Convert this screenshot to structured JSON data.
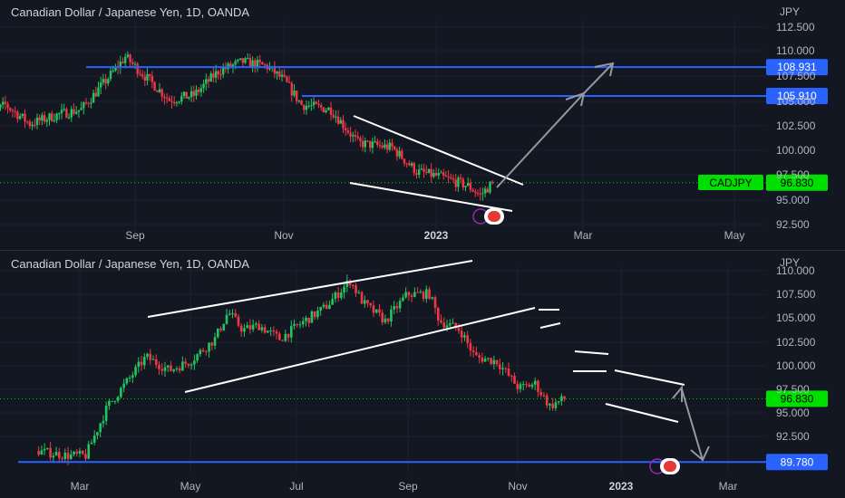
{
  "panels": [
    {
      "title": "Canadian Dollar / Japanese Yen, 1D, OANDA",
      "unit": "JPY",
      "symbol_tag": "CADJPY",
      "price_ticks": [
        "112.500",
        "110.000",
        "107.500",
        "105.000",
        "102.500",
        "100.000",
        "97.500",
        "95.000",
        "92.500"
      ],
      "time_ticks": [
        "Sep",
        "Nov",
        "2023",
        "Mar",
        "May"
      ],
      "levels": [
        "108.931",
        "105.910"
      ],
      "last_price": "96.830"
    },
    {
      "title": "Canadian Dollar / Japanese Yen, 1D, OANDA",
      "unit": "JPY",
      "price_ticks": [
        "110.000",
        "107.500",
        "105.000",
        "102.500",
        "100.000",
        "97.500",
        "95.000",
        "92.500"
      ],
      "time_ticks": [
        "Mar",
        "May",
        "Jul",
        "Sep",
        "Nov",
        "2023",
        "Mar"
      ],
      "levels": [
        "89.780"
      ],
      "last_price": "96.830"
    }
  ],
  "colors": {
    "up": "#26a69a",
    "down": "#ef5350",
    "up_candle": "#22c55e",
    "down_candle": "#f23645",
    "level": "#2962ff",
    "tag": "#00e000",
    "grid": "#1e2230",
    "trend": "#ffffff",
    "arrow": "#9598a1"
  },
  "icons": [
    "canada-flag-icon"
  ],
  "chart_data": [
    {
      "type": "candlestick",
      "title": "Canadian Dollar / Japanese Yen, 1D, OANDA",
      "y_unit": "JPY",
      "ylim": [
        91.5,
        113.5
      ],
      "x_ticks": [
        "Sep",
        "Nov",
        "2023",
        "Mar",
        "May"
      ],
      "horizontal_levels": [
        108.931,
        105.91
      ],
      "last_price": 96.83,
      "close_path": [
        {
          "t": "Jul 1",
          "close": 103.5
        },
        {
          "t": "Jul 10",
          "close": 105.0
        },
        {
          "t": "Jul 20",
          "close": 103.0
        },
        {
          "t": "Aug 1",
          "close": 104.0
        },
        {
          "t": "Aug 10",
          "close": 104.5
        },
        {
          "t": "Aug 20",
          "close": 107.5
        },
        {
          "t": "Aug 28",
          "close": 110.0
        },
        {
          "t": "Sep 5",
          "close": 108.0
        },
        {
          "t": "Sep 15",
          "close": 105.5
        },
        {
          "t": "Sep 25",
          "close": 106.0
        },
        {
          "t": "Oct 5",
          "close": 108.5
        },
        {
          "t": "Oct 15",
          "close": 109.5
        },
        {
          "t": "Oct 25",
          "close": 109.0
        },
        {
          "t": "Nov 1",
          "close": 107.5
        },
        {
          "t": "Nov 8",
          "close": 105.0
        },
        {
          "t": "Nov 20",
          "close": 104.5
        },
        {
          "t": "Dec 1",
          "close": 101.0
        },
        {
          "t": "Dec 15",
          "close": 100.5
        },
        {
          "t": "Dec 25",
          "close": 98.0
        },
        {
          "t": "Jan 3",
          "close": 97.5
        },
        {
          "t": "Jan 15",
          "close": 96.5
        },
        {
          "t": "Jan 20",
          "close": 95.5
        },
        {
          "t": "Jan 25",
          "close": 96.83
        }
      ]
    },
    {
      "type": "candlestick",
      "title": "Canadian Dollar / Japanese Yen, 1D, OANDA",
      "y_unit": "JPY",
      "ylim": [
        88.8,
        111.2
      ],
      "x_ticks": [
        "Mar",
        "May",
        "Jul",
        "Sep",
        "Nov",
        "2023",
        "Mar"
      ],
      "horizontal_levels": [
        89.78
      ],
      "last_price": 96.83,
      "close_path": [
        {
          "t": "Feb 1",
          "close": 91.0
        },
        {
          "t": "Feb 20",
          "close": 90.5
        },
        {
          "t": "Mar 5",
          "close": 90.5
        },
        {
          "t": "Mar 20",
          "close": 96.0
        },
        {
          "t": "Apr 1",
          "close": 98.5
        },
        {
          "t": "Apr 15",
          "close": 101.5
        },
        {
          "t": "May 1",
          "close": 100.0
        },
        {
          "t": "May 15",
          "close": 101.0
        },
        {
          "t": "Jun 1",
          "close": 103.5
        },
        {
          "t": "Jun 10",
          "close": 106.5
        },
        {
          "t": "Jun 20",
          "close": 104.5
        },
        {
          "t": "Jul 1",
          "close": 105.0
        },
        {
          "t": "Jul 15",
          "close": 103.5
        },
        {
          "t": "Aug 1",
          "close": 105.5
        },
        {
          "t": "Aug 15",
          "close": 107.0
        },
        {
          "t": "Sep 1",
          "close": 110.0
        },
        {
          "t": "Sep 10",
          "close": 107.5
        },
        {
          "t": "Sep 25",
          "close": 105.5
        },
        {
          "t": "Oct 10",
          "close": 108.5
        },
        {
          "t": "Oct 25",
          "close": 108.5
        },
        {
          "t": "Nov 1",
          "close": 105.5
        },
        {
          "t": "Nov 15",
          "close": 104.5
        },
        {
          "t": "Nov 25",
          "close": 101.5
        },
        {
          "t": "Dec 10",
          "close": 101.0
        },
        {
          "t": "Dec 25",
          "close": 98.0
        },
        {
          "t": "Jan 5",
          "close": 98.5
        },
        {
          "t": "Jan 15",
          "close": 96.0
        },
        {
          "t": "Jan 25",
          "close": 96.83
        }
      ]
    }
  ]
}
